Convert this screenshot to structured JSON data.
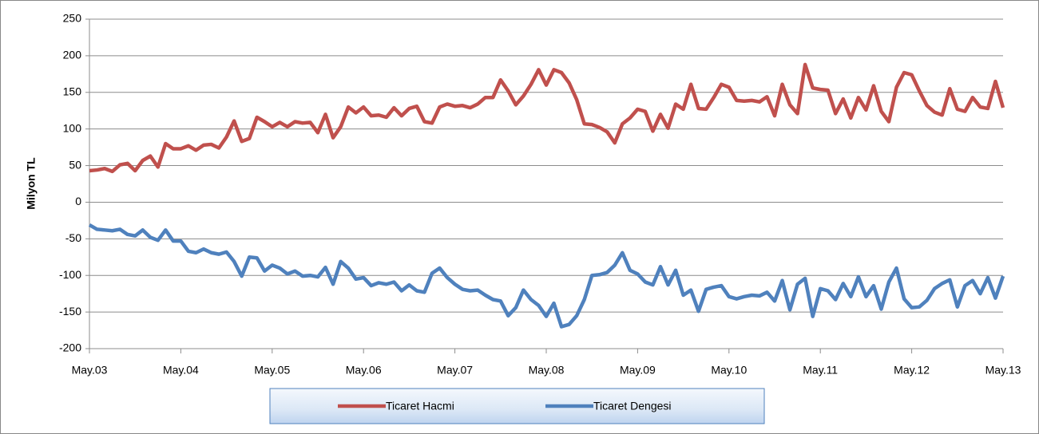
{
  "chart_data": {
    "type": "line",
    "ylabel": "Milyon TL",
    "categories": [
      "May.03",
      null,
      null,
      null,
      null,
      null,
      null,
      null,
      null,
      null,
      null,
      null,
      "May.04",
      null,
      null,
      null,
      null,
      null,
      null,
      null,
      null,
      null,
      null,
      null,
      "May.05",
      null,
      null,
      null,
      null,
      null,
      null,
      null,
      null,
      null,
      null,
      null,
      "May.06",
      null,
      null,
      null,
      null,
      null,
      null,
      null,
      null,
      null,
      null,
      null,
      "May.07",
      null,
      null,
      null,
      null,
      null,
      null,
      null,
      null,
      null,
      null,
      null,
      "May.08",
      null,
      null,
      null,
      null,
      null,
      null,
      null,
      null,
      null,
      null,
      null,
      "May.09",
      null,
      null,
      null,
      null,
      null,
      null,
      null,
      null,
      null,
      null,
      null,
      "May.10",
      null,
      null,
      null,
      null,
      null,
      null,
      null,
      null,
      null,
      null,
      null,
      "May.11",
      null,
      null,
      null,
      null,
      null,
      null,
      null,
      null,
      null,
      null,
      null,
      "May.12",
      null,
      null,
      null,
      null,
      null,
      null,
      null,
      null,
      null,
      null,
      null,
      "May.13"
    ],
    "series": [
      {
        "name": "Ticaret Hacmi",
        "color": "#c0504d",
        "values": [
          43,
          44,
          46,
          42,
          51,
          53,
          43,
          57,
          63,
          48,
          80,
          73,
          73,
          77,
          71,
          78,
          79,
          74,
          89,
          111,
          83,
          87,
          116,
          110,
          103,
          109,
          103,
          110,
          108,
          109,
          95,
          120,
          88,
          103,
          130,
          122,
          130,
          118,
          119,
          116,
          129,
          118,
          128,
          131,
          110,
          108,
          130,
          134,
          131,
          132,
          129,
          134,
          143,
          143,
          167,
          152,
          133,
          145,
          161,
          181,
          160,
          181,
          177,
          163,
          140,
          107,
          106,
          102,
          96,
          81,
          107,
          115,
          127,
          124,
          97,
          120,
          101,
          134,
          127,
          161,
          128,
          127,
          143,
          161,
          157,
          139,
          138,
          139,
          137,
          144,
          118,
          161,
          133,
          121,
          188,
          156,
          154,
          153,
          121,
          141,
          115,
          143,
          126,
          159,
          124,
          110,
          157,
          177,
          174,
          152,
          132,
          123,
          119,
          155,
          127,
          124,
          143,
          130,
          128,
          165,
          129
        ]
      },
      {
        "name": "Ticaret Dengesi",
        "color": "#4f81bd",
        "values": [
          -31,
          -37,
          -38,
          -39,
          -37,
          -44,
          -46,
          -38,
          -48,
          -52,
          -38,
          -53,
          -53,
          -67,
          -69,
          -64,
          -69,
          -71,
          -68,
          -81,
          -101,
          -75,
          -76,
          -94,
          -86,
          -90,
          -98,
          -94,
          -101,
          -100,
          -102,
          -89,
          -112,
          -81,
          -90,
          -105,
          -103,
          -114,
          -110,
          -112,
          -109,
          -121,
          -113,
          -121,
          -123,
          -97,
          -90,
          -103,
          -112,
          -119,
          -121,
          -120,
          -127,
          -133,
          -135,
          -155,
          -144,
          -120,
          -133,
          -141,
          -156,
          -138,
          -170,
          -167,
          -155,
          -133,
          -100,
          -99,
          -96,
          -86,
          -69,
          -93,
          -98,
          -109,
          -113,
          -88,
          -113,
          -93,
          -127,
          -120,
          -149,
          -119,
          -116,
          -114,
          -129,
          -132,
          -129,
          -127,
          -128,
          -123,
          -135,
          -107,
          -147,
          -112,
          -104,
          -156,
          -118,
          -121,
          -133,
          -111,
          -129,
          -102,
          -129,
          -114,
          -146,
          -109,
          -90,
          -132,
          -144,
          -143,
          -134,
          -118,
          -111,
          -106,
          -143,
          -114,
          -107,
          -125,
          -103,
          -131,
          -101
        ]
      }
    ],
    "ylim": [
      -200,
      250
    ],
    "yticks": [
      -200,
      -150,
      -100,
      -50,
      0,
      50,
      100,
      150,
      200,
      250
    ],
    "grid": true,
    "legend": "bottom"
  }
}
